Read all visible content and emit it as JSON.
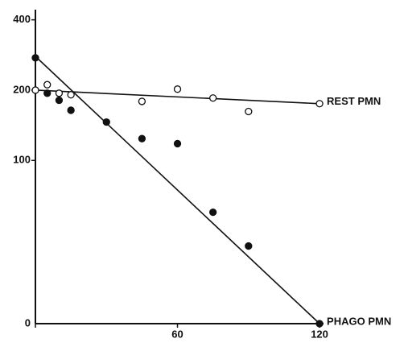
{
  "chart_data": {
    "type": "scatter",
    "xlim": [
      0,
      121
    ],
    "xticks": [
      0,
      60,
      120
    ],
    "ylim": [
      20,
      415
    ],
    "yticks": [
      100,
      200,
      400
    ],
    "ylog": true,
    "series": [
      {
        "name": "REST PMN",
        "color": "#111111",
        "marker": "open",
        "x": [
          0,
          5,
          10,
          15,
          45,
          60,
          75,
          90,
          120
        ],
        "values": [
          200,
          211,
          194,
          191,
          179,
          202,
          185,
          162,
          175
        ],
        "fit": {
          "x": [
            0,
            120
          ],
          "values": [
            200,
            175
          ]
        }
      },
      {
        "name": "PHAGO PMN",
        "color": "#111111",
        "marker": "filled",
        "x": [
          0,
          5,
          10,
          15,
          30,
          45,
          60,
          75,
          90,
          120
        ],
        "values": [
          275,
          194,
          181,
          164,
          146,
          124,
          118,
          60,
          43,
          20
        ],
        "fit": {
          "x": [
            0,
            120
          ],
          "values": [
            279,
            20
          ]
        }
      }
    ]
  }
}
